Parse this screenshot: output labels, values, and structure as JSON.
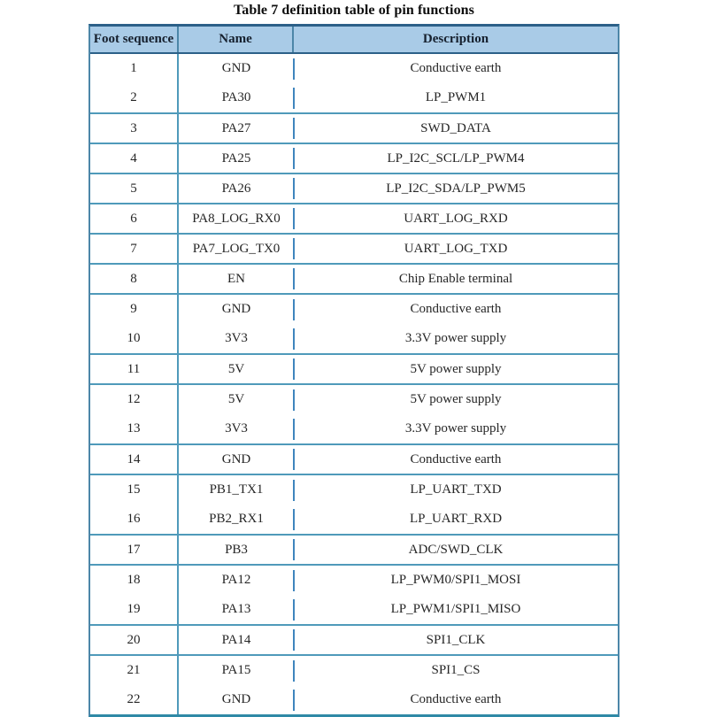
{
  "title": "Table 7 definition table of pin functions",
  "table": {
    "columns": [
      "Foot sequence",
      "Name",
      "Description"
    ],
    "groups": [
      {
        "rows": [
          [
            "1",
            "GND",
            "Conductive earth"
          ],
          [
            "2",
            "PA30",
            "LP_PWM1"
          ]
        ]
      },
      {
        "rows": [
          [
            "3",
            "PA27",
            "SWD_DATA"
          ]
        ]
      },
      {
        "rows": [
          [
            "4",
            "PA25",
            "LP_I2C_SCL/LP_PWM4"
          ]
        ]
      },
      {
        "rows": [
          [
            "5",
            "PA26",
            "LP_I2C_SDA/LP_PWM5"
          ]
        ]
      },
      {
        "rows": [
          [
            "6",
            "PA8_LOG_RX0",
            "UART_LOG_RXD"
          ]
        ]
      },
      {
        "rows": [
          [
            "7",
            "PA7_LOG_TX0",
            "UART_LOG_TXD"
          ]
        ]
      },
      {
        "rows": [
          [
            "8",
            "EN",
            "Chip Enable terminal"
          ]
        ]
      },
      {
        "rows": [
          [
            "9",
            "GND",
            "Conductive earth"
          ],
          [
            "10",
            "3V3",
            "3.3V power supply"
          ]
        ]
      },
      {
        "rows": [
          [
            "11",
            "5V",
            "5V power supply"
          ]
        ]
      },
      {
        "rows": [
          [
            "12",
            "5V",
            "5V power supply"
          ],
          [
            "13",
            "3V3",
            "3.3V power supply"
          ]
        ]
      },
      {
        "rows": [
          [
            "14",
            "GND",
            "Conductive earth"
          ]
        ]
      },
      {
        "rows": [
          [
            "15",
            "PB1_TX1",
            "LP_UART_TXD"
          ],
          [
            "16",
            "PB2_RX1",
            "LP_UART_RXD"
          ]
        ]
      },
      {
        "rows": [
          [
            "17",
            "PB3",
            "ADC/SWD_CLK"
          ]
        ]
      },
      {
        "rows": [
          [
            "18",
            "PA12",
            "LP_PWM0/SPI1_MOSI"
          ],
          [
            "19",
            "PA13",
            "LP_PWM1/SPI1_MISO"
          ]
        ]
      },
      {
        "rows": [
          [
            "20",
            "PA14",
            "SPI1_CLK"
          ]
        ]
      },
      {
        "rows": [
          [
            "21",
            "PA15",
            "SPI1_CS"
          ],
          [
            "22",
            "GND",
            "Conductive earth"
          ]
        ]
      }
    ]
  },
  "colors": {
    "header_bg": "#a9cbe7",
    "border_outer": "#4c86a8",
    "border_top": "#2c6088",
    "border_bottom": "#2f89a6",
    "grid_line": "#4f9aba",
    "divider_dash": "#3f85bd",
    "text": "#262626",
    "header_text": "#16202e",
    "title_text": "#0d0d0d",
    "page_bg": "#ffffff"
  }
}
